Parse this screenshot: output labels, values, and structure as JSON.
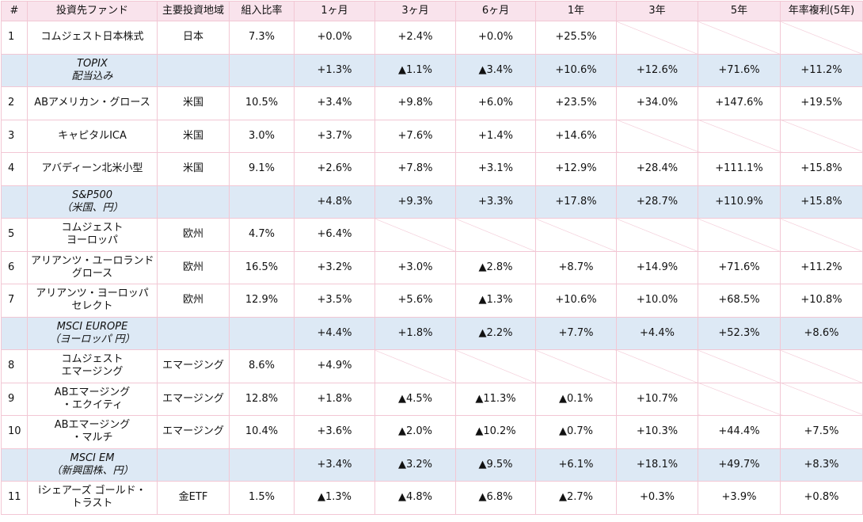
{
  "headers": [
    "#",
    "投資先ファンド",
    "主要投資地域",
    "組入比率",
    "1ヶ月",
    "3ヶ月",
    "6ヶ月",
    "1年",
    "3年",
    "5年",
    "年率複利(5年)"
  ],
  "rows": [
    {
      "type": "fund",
      "num": "1",
      "name": [
        "コムジェスト日本株式"
      ],
      "region": "日本",
      "ratio": "7.3%",
      "m1": "+0.0%",
      "m3": "+2.4%",
      "m6": "+0.0%",
      "y1": "+25.5%",
      "y3": "",
      "y5": "",
      "cagr": ""
    },
    {
      "type": "bench",
      "num": "",
      "name": [
        "TOPIX",
        "配当込み"
      ],
      "region": "",
      "ratio": "",
      "m1": "+1.3%",
      "m3": "▲1.1%",
      "m6": "▲3.4%",
      "y1": "+10.6%",
      "y3": "+12.6%",
      "y5": "+71.6%",
      "cagr": "+11.2%"
    },
    {
      "type": "fund",
      "num": "2",
      "name": [
        "ABアメリカン・グロース"
      ],
      "region": "米国",
      "ratio": "10.5%",
      "m1": "+3.4%",
      "m3": "+9.8%",
      "m6": "+6.0%",
      "y1": "+23.5%",
      "y3": "+34.0%",
      "y5": "+147.6%",
      "cagr": "+19.5%"
    },
    {
      "type": "fund",
      "num": "3",
      "name": [
        "キャピタルICA"
      ],
      "region": "米国",
      "ratio": "3.0%",
      "m1": "+3.7%",
      "m3": "+7.6%",
      "m6": "+1.4%",
      "y1": "+14.6%",
      "y3": "",
      "y5": "",
      "cagr": ""
    },
    {
      "type": "fund",
      "num": "4",
      "name": [
        "アバディーン北米小型"
      ],
      "region": "米国",
      "ratio": "9.1%",
      "m1": "+2.6%",
      "m3": "+7.8%",
      "m6": "+3.1%",
      "y1": "+12.9%",
      "y3": "+28.4%",
      "y5": "+111.1%",
      "cagr": "+15.8%"
    },
    {
      "type": "bench",
      "num": "",
      "name": [
        "S&P500",
        "（米国、円）"
      ],
      "region": "",
      "ratio": "",
      "m1": "+4.8%",
      "m3": "+9.3%",
      "m6": "+3.3%",
      "y1": "+17.8%",
      "y3": "+28.7%",
      "y5": "+110.9%",
      "cagr": "+15.8%"
    },
    {
      "type": "fund",
      "num": "5",
      "name": [
        "コムジェスト",
        "ヨーロッパ"
      ],
      "region": "欧州",
      "ratio": "4.7%",
      "m1": "+6.4%",
      "m3": "",
      "m6": "",
      "y1": "",
      "y3": "",
      "y5": "",
      "cagr": ""
    },
    {
      "type": "fund",
      "num": "6",
      "name": [
        "アリアンツ・ユーロランド",
        "グロース"
      ],
      "region": "欧州",
      "ratio": "16.5%",
      "m1": "+3.2%",
      "m3": "+3.0%",
      "m6": "▲2.8%",
      "y1": "+8.7%",
      "y3": "+14.9%",
      "y5": "+71.6%",
      "cagr": "+11.2%"
    },
    {
      "type": "fund",
      "num": "7",
      "name": [
        "アリアンツ・ヨーロッパ",
        "セレクト"
      ],
      "region": "欧州",
      "ratio": "12.9%",
      "m1": "+3.5%",
      "m3": "+5.6%",
      "m6": "▲1.3%",
      "y1": "+10.6%",
      "y3": "+10.0%",
      "y5": "+68.5%",
      "cagr": "+10.8%"
    },
    {
      "type": "bench",
      "num": "",
      "name": [
        "MSCI EUROPE",
        "（ヨーロッパ 円）"
      ],
      "region": "",
      "ratio": "",
      "m1": "+4.4%",
      "m3": "+1.8%",
      "m6": "▲2.2%",
      "y1": "+7.7%",
      "y3": "+4.4%",
      "y5": "+52.3%",
      "cagr": "+8.6%"
    },
    {
      "type": "fund",
      "num": "8",
      "name": [
        "コムジェスト",
        "エマージング"
      ],
      "region": "エマージング",
      "ratio": "8.6%",
      "m1": "+4.9%",
      "m3": "",
      "m6": "",
      "y1": "",
      "y3": "",
      "y5": "",
      "cagr": ""
    },
    {
      "type": "fund",
      "num": "9",
      "name": [
        "ABエマージング",
        "・エクイティ"
      ],
      "region": "エマージング",
      "ratio": "12.8%",
      "m1": "+1.8%",
      "m3": "▲4.5%",
      "m6": "▲11.3%",
      "y1": "▲0.1%",
      "y3": "+10.7%",
      "y5": "",
      "cagr": ""
    },
    {
      "type": "fund",
      "num": "10",
      "name": [
        "ABエマージング",
        "・マルチ"
      ],
      "region": "エマージング",
      "ratio": "10.4%",
      "m1": "+3.6%",
      "m3": "▲2.0%",
      "m6": "▲10.2%",
      "y1": "▲0.7%",
      "y3": "+10.3%",
      "y5": "+44.4%",
      "cagr": "+7.5%"
    },
    {
      "type": "bench",
      "num": "",
      "name": [
        "MSCI EM",
        "（新興国株、円）"
      ],
      "region": "",
      "ratio": "",
      "m1": "+3.4%",
      "m3": "▲3.2%",
      "m6": "▲9.5%",
      "y1": "+6.1%",
      "y3": "+18.1%",
      "y5": "+49.7%",
      "cagr": "+8.3%"
    },
    {
      "type": "fund",
      "num": "11",
      "name": [
        "iシェアーズ ゴールド・",
        "トラスト"
      ],
      "region": "金ETF",
      "ratio": "1.5%",
      "m1": "▲1.3%",
      "m3": "▲4.8%",
      "m6": "▲6.8%",
      "y1": "▲2.7%",
      "y3": "+0.3%",
      "y5": "+3.9%",
      "cagr": "+0.8%"
    }
  ]
}
